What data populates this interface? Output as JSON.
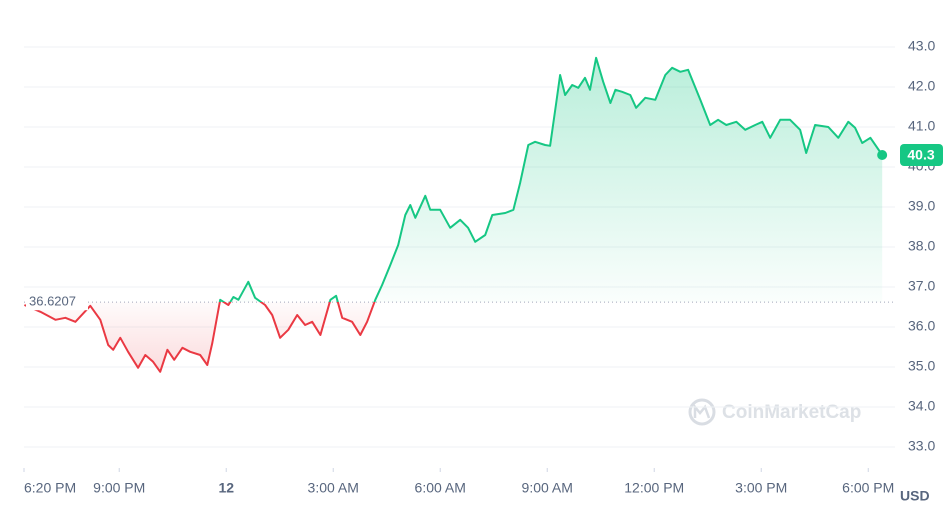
{
  "chart_data": {
    "type": "line",
    "x": [
      18.34,
      18.79,
      19.21,
      19.49,
      19.77,
      20.19,
      20.47,
      20.69,
      20.83,
      21.03,
      21.25,
      21.53,
      21.73,
      21.95,
      22.15,
      22.35,
      22.54,
      22.77,
      22.99,
      23.27,
      23.47,
      23.61,
      23.83,
      24.06,
      24.2,
      24.34,
      24.62,
      24.81,
      25.09,
      25.29,
      25.51,
      25.74,
      25.99,
      26.21,
      26.41,
      26.64,
      26.92,
      27.08,
      27.25,
      27.53,
      27.76,
      27.95,
      28.18,
      28.37,
      28.6,
      28.82,
      29.02,
      29.16,
      29.3,
      29.58,
      29.72,
      30.0,
      30.28,
      30.56,
      30.78,
      30.98,
      31.26,
      31.46,
      31.82,
      32.05,
      32.24,
      32.47,
      32.66,
      32.94,
      33.08,
      33.25,
      33.36,
      33.5,
      33.7,
      33.87,
      34.06,
      34.2,
      34.37,
      34.57,
      34.77,
      34.91,
      35.1,
      35.33,
      35.49,
      35.75,
      36.03,
      36.31,
      36.5,
      36.73,
      36.95,
      37.29,
      37.57,
      37.79,
      38.02,
      38.3,
      38.55,
      38.83,
      39.03,
      39.25,
      39.53,
      39.81,
      40.09,
      40.26,
      40.51,
      40.88,
      41.16,
      41.44,
      41.63,
      41.83,
      42.06,
      42.39
    ],
    "values": [
      36.55,
      36.38,
      36.18,
      36.23,
      36.13,
      36.53,
      36.18,
      35.55,
      35.43,
      35.73,
      35.38,
      34.98,
      35.3,
      35.13,
      34.88,
      35.43,
      35.18,
      35.48,
      35.38,
      35.3,
      35.05,
      35.6,
      36.68,
      36.55,
      36.75,
      36.68,
      37.13,
      36.73,
      36.55,
      36.3,
      35.73,
      35.93,
      36.3,
      36.05,
      36.13,
      35.8,
      36.68,
      36.78,
      36.23,
      36.13,
      35.8,
      36.13,
      36.68,
      37.05,
      37.55,
      38.05,
      38.8,
      39.05,
      38.73,
      39.28,
      38.93,
      38.93,
      38.48,
      38.68,
      38.48,
      38.13,
      38.3,
      38.8,
      38.85,
      38.93,
      39.6,
      40.55,
      40.63,
      40.55,
      40.53,
      41.6,
      42.3,
      41.8,
      42.05,
      41.98,
      42.23,
      41.93,
      42.73,
      42.13,
      41.6,
      41.93,
      41.88,
      41.8,
      41.48,
      41.73,
      41.68,
      42.3,
      42.48,
      42.38,
      42.43,
      41.68,
      41.05,
      41.18,
      41.05,
      41.13,
      40.93,
      41.05,
      41.13,
      40.73,
      41.18,
      41.18,
      40.93,
      40.35,
      41.05,
      41.0,
      40.73,
      41.13,
      40.98,
      40.6,
      40.73,
      40.3
    ],
    "baseline": 36.6207,
    "color_up": "#16c784",
    "color_down": "#ea3943",
    "xlim": [
      18.33,
      42.75
    ],
    "ylim": [
      32.475,
      43.975
    ],
    "xticks": [
      {
        "value": 18.33,
        "label": "6:20 PM"
      },
      {
        "value": 21,
        "label": "9:00 PM"
      },
      {
        "value": 24,
        "label": "12"
      },
      {
        "value": 27,
        "label": "3:00 AM"
      },
      {
        "value": 30,
        "label": "6:00 AM"
      },
      {
        "value": 33,
        "label": "9:00 AM"
      },
      {
        "value": 36,
        "label": "12:00 PM"
      },
      {
        "value": 39,
        "label": "3:00 PM"
      },
      {
        "value": 42,
        "label": "6:00 PM"
      }
    ],
    "yticks": [
      {
        "value": 33,
        "label": "33.0"
      },
      {
        "value": 34,
        "label": "34.0"
      },
      {
        "value": 35,
        "label": "35.0"
      },
      {
        "value": 36,
        "label": "36.0"
      },
      {
        "value": 37,
        "label": "37.0"
      },
      {
        "value": 38,
        "label": "38.0"
      },
      {
        "value": 39,
        "label": "39.0"
      },
      {
        "value": 40,
        "label": "40.0"
      },
      {
        "value": 41,
        "label": "41.0"
      },
      {
        "value": 42,
        "label": "42.0"
      },
      {
        "value": 43,
        "label": "43.0"
      }
    ],
    "grid": true,
    "currency": "USD",
    "watermark": "CoinMarketCap"
  }
}
